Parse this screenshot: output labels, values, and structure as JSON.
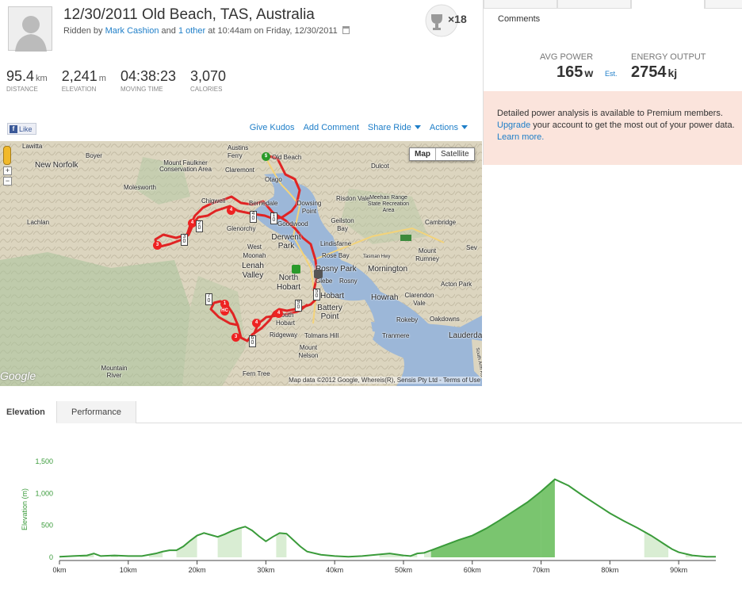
{
  "header": {
    "title": "12/30/2011 Old Beach, TAS, Australia",
    "ridden_by_prefix": "Ridden by",
    "rider": "Mark Cashion",
    "and": "and",
    "other": "1 other",
    "time_text": "at 10:44am on Friday, 12/30/2011",
    "trophy_count": "×18"
  },
  "stats": [
    {
      "value": "95.4",
      "unit": "km",
      "label": "Distance"
    },
    {
      "value": "2,241",
      "unit": "m",
      "label": "Elevation"
    },
    {
      "value": "04:38:23",
      "unit": "",
      "label": "Moving Time"
    },
    {
      "value": "3,070",
      "unit": "",
      "label": "Calories"
    }
  ],
  "right_panel": {
    "comments_label": "Comments",
    "avg_power_label": "AVG POWER",
    "avg_power_value": "165",
    "avg_power_unit": "w",
    "est_label": "Est.",
    "energy_label": "ENERGY OUTPUT",
    "energy_value": "2754",
    "energy_unit": "kj",
    "premium_text": "Detailed power analysis is available to Premium members.",
    "upgrade_link": "Upgrade",
    "upgrade_rest": " your account to get the most out of your power data.",
    "learn_more": "Learn more."
  },
  "action_bar": {
    "like_label": "Like",
    "give_kudos": "Give Kudos",
    "add_comment": "Add Comment",
    "share_ride": "Share Ride",
    "actions": "Actions"
  },
  "map": {
    "type_map": "Map",
    "type_satellite": "Satellite",
    "zoom_in": "+",
    "zoom_out": "−",
    "attribution": "Map data ©2012 Google, Whereis(R), Sensis Pty Ltd - Terms of Use",
    "logo": "Google",
    "places": [
      {
        "name": "Lawitta"
      },
      {
        "name": "Boyer"
      },
      {
        "name": "New Norfolk"
      },
      {
        "name": "Mount Faulkner Conservation Area"
      },
      {
        "name": "Austins Ferry"
      },
      {
        "name": "Old Beach"
      },
      {
        "name": "Claremont"
      },
      {
        "name": "Dulcot"
      },
      {
        "name": "Otago"
      },
      {
        "name": "Molesworth"
      },
      {
        "name": "Chigwell"
      },
      {
        "name": "Berriedale"
      },
      {
        "name": "Dowsing Point"
      },
      {
        "name": "Risdon Vale"
      },
      {
        "name": "Meehan Range State Recreation Area"
      },
      {
        "name": "Lachlan"
      },
      {
        "name": "Glenorchy"
      },
      {
        "name": "Goodwood"
      },
      {
        "name": "Geilston Bay"
      },
      {
        "name": "Cambridge"
      },
      {
        "name": "Derwent Park"
      },
      {
        "name": "Lindisfarne"
      },
      {
        "name": "West Moonah"
      },
      {
        "name": "Rose Bay"
      },
      {
        "name": "Tasman Hwy"
      },
      {
        "name": "Mount Rumney"
      },
      {
        "name": "Lenah Valley"
      },
      {
        "name": "Rosny Park"
      },
      {
        "name": "Mornington"
      },
      {
        "name": "North Hobart"
      },
      {
        "name": "Glebe"
      },
      {
        "name": "Rosny"
      },
      {
        "name": "Acton Park"
      },
      {
        "name": "Hobart"
      },
      {
        "name": "Howrah"
      },
      {
        "name": "Clarendon Vale"
      },
      {
        "name": "Battery Point"
      },
      {
        "name": "Rokeby"
      },
      {
        "name": "Oakdowns"
      },
      {
        "name": "South Hobart"
      },
      {
        "name": "Ridgeway"
      },
      {
        "name": "Tolmans Hill"
      },
      {
        "name": "Tranmere"
      },
      {
        "name": "Lauderdale"
      },
      {
        "name": "Mount Nelson"
      },
      {
        "name": "Mountain River"
      },
      {
        "name": "Fern Tree"
      },
      {
        "name": "Sev"
      },
      {
        "name": "South Arm Rd"
      }
    ]
  },
  "bottom_tabs": {
    "elevation": "Elevation",
    "performance": "Performance"
  },
  "chart_data": {
    "type": "area",
    "title": "",
    "xlabel": "",
    "ylabel": "Elevation (m)",
    "x_ticks": [
      "0km",
      "10km",
      "20km",
      "30km",
      "40km",
      "50km",
      "60km",
      "70km",
      "80km",
      "90km"
    ],
    "y_ticks": [
      "0",
      "500",
      "1,000",
      "1,500"
    ],
    "xlim": [
      0,
      95.4
    ],
    "ylim": [
      0,
      1500
    ],
    "series": [
      {
        "x": [
          0,
          2,
          4,
          5,
          6,
          8,
          10,
          12,
          14,
          15,
          16,
          17,
          18,
          19,
          20,
          21,
          22,
          23,
          24,
          25,
          26,
          27,
          28,
          29,
          30,
          31,
          32,
          33,
          34,
          35,
          36,
          38,
          40,
          42,
          44,
          46,
          48,
          50,
          51,
          52,
          53,
          54,
          55,
          56,
          57,
          58,
          60,
          62,
          64,
          66,
          68,
          70,
          72,
          74,
          76,
          78,
          80,
          82,
          84,
          86,
          87,
          88,
          89,
          90,
          92,
          94,
          95.4
        ],
        "y": [
          10,
          20,
          30,
          60,
          20,
          30,
          20,
          20,
          60,
          90,
          110,
          110,
          170,
          260,
          340,
          380,
          350,
          320,
          360,
          410,
          450,
          480,
          420,
          330,
          250,
          320,
          380,
          370,
          270,
          170,
          90,
          40,
          20,
          10,
          20,
          40,
          60,
          30,
          20,
          60,
          70,
          110,
          150,
          190,
          230,
          270,
          340,
          450,
          580,
          720,
          860,
          1030,
          1220,
          1120,
          970,
          830,
          690,
          570,
          460,
          340,
          270,
          200,
          130,
          80,
          30,
          10,
          10
        ]
      }
    ],
    "grid": "off",
    "colors": {
      "line": "#3a9b3a",
      "fill": "#6bbf5f",
      "light_fill": "#cfe8c8",
      "axis_text": "#3a9b3a"
    }
  }
}
